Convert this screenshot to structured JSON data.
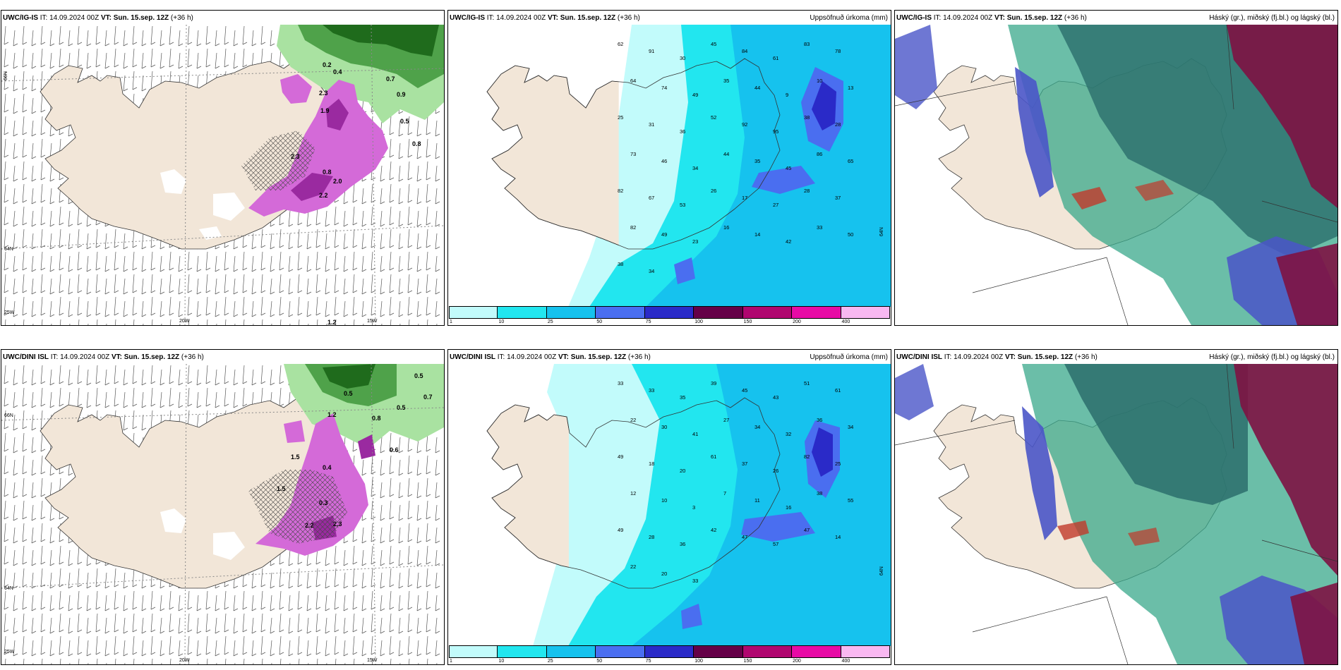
{
  "panels": [
    {
      "model": "UWC/IG-IS",
      "it_label": "IT:",
      "it": "14.09.2024 00Z",
      "vt_label": "VT:",
      "vt": "Sun. 15.sep. 12Z",
      "lead": "(+36 h)",
      "right": ""
    },
    {
      "model": "UWC/IG-IS",
      "it_label": "IT:",
      "it": "14.09.2024 00Z",
      "vt_label": "VT:",
      "vt": "Sun. 15.sep. 12Z",
      "lead": "(+36 h)",
      "right": "Uppsöfnuð úrkoma (mm)"
    },
    {
      "model": "UWC/IG-IS",
      "it_label": "IT:",
      "it": "14.09.2024 00Z",
      "vt_label": "VT:",
      "vt": "Sun. 15.sep. 12Z",
      "lead": "(+36 h)",
      "right": "Háský (gr.), miðský (fj.bl.) og lágský (bl.)"
    },
    {
      "model": "UWC/DINI ISL",
      "it_label": "IT:",
      "it": "14.09.2024 00Z",
      "vt_label": "VT:",
      "vt": "Sun. 15.sep. 12Z",
      "lead": "(+36 h)",
      "right": ""
    },
    {
      "model": "UWC/DINI ISL",
      "it_label": "IT:",
      "it": "14.09.2024 00Z",
      "vt_label": "VT:",
      "vt": "Sun. 15.sep. 12Z",
      "lead": "(+36 h)",
      "right": "Uppsöfnuð úrkoma (mm)"
    },
    {
      "model": "UWC/DINI ISL",
      "it_label": "IT:",
      "it": "14.09.2024 00Z",
      "vt_label": "VT:",
      "vt": "Sun. 15.sep. 12Z",
      "lead": "(+36 h)",
      "right": "Háský (gr.), miðský (fj.bl.) og lágský (bl.)"
    }
  ],
  "geo_labels": {
    "lat66": "66N",
    "lat64": "64N",
    "lon25": "25W",
    "lon20": "20W",
    "lon15": "15W"
  },
  "legend": {
    "ticks": [
      "1",
      "10",
      "25",
      "50",
      "75",
      "100",
      "150",
      "200",
      "400"
    ],
    "colors": [
      "#c2fbfb",
      "#22e6ef",
      "#16c2ee",
      "#4a6ef0",
      "#2a2ac8",
      "#650047",
      "#b0066f",
      "#e80aa5",
      "#f9b8f1"
    ]
  },
  "colors": {
    "land": "#f2e6d8",
    "snow_pink": "#d46ad8",
    "green_dark": "#1f6b1c",
    "green_light": "#a9e2a1",
    "cloud_high": "#7e1243",
    "cloud_mid": "#3aa88b",
    "cloud_low": "#4a55c8"
  },
  "precip_values_top": [
    "62",
    "91",
    "30",
    "45",
    "84",
    "61",
    "83",
    "78",
    "64",
    "74",
    "49",
    "35",
    "44",
    "9",
    "10",
    "13",
    "25",
    "31",
    "36",
    "52",
    "92",
    "95",
    "38",
    "28",
    "73",
    "46",
    "34",
    "44",
    "35",
    "45",
    "86",
    "65",
    "82",
    "67",
    "53",
    "26",
    "17",
    "27",
    "28",
    "37",
    "82",
    "49",
    "23",
    "16",
    "14",
    "42",
    "33",
    "50",
    "38",
    "34"
  ],
  "precip_values_bottom": [
    "33",
    "33",
    "35",
    "39",
    "45",
    "43",
    "51",
    "61",
    "22",
    "30",
    "41",
    "27",
    "34",
    "32",
    "36",
    "34",
    "49",
    "18",
    "20",
    "61",
    "37",
    "26",
    "82",
    "25",
    "12",
    "10",
    "3",
    "7",
    "11",
    "16",
    "38",
    "55",
    "49",
    "28",
    "36",
    "42",
    "47",
    "57",
    "47",
    "14",
    "22",
    "20",
    "33"
  ],
  "snow_values_top": [
    "0.2",
    "0.4",
    "2.3",
    "1.9",
    "2.3",
    "2.0",
    "2.2",
    "0.8",
    "0.9",
    "0.5",
    "0.8",
    "1.2",
    "0.7"
  ],
  "snow_values_bottom": [
    "0.5",
    "0.7",
    "0.5",
    "1.2",
    "1.5",
    "2.2",
    "2.3",
    "0.4",
    "0.8",
    "0.5",
    "0.6",
    "1.5",
    "0.3"
  ]
}
